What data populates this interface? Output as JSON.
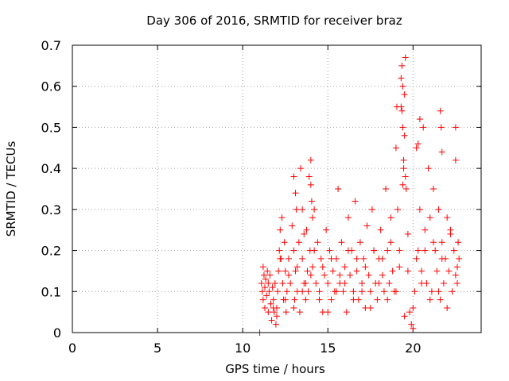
{
  "chart_data": {
    "type": "scatter",
    "title": "Day 306 of 2016, SRMTID for receiver braz",
    "xlabel": "GPS time / hours",
    "ylabel": "SRMTID / TECUs",
    "xlim": [
      0,
      24
    ],
    "ylim": [
      0,
      0.7
    ],
    "xticks": [
      0,
      5,
      10,
      15,
      20
    ],
    "yticks": [
      0,
      0.1,
      0.2,
      0.3,
      0.4,
      0.5,
      0.6,
      0.7
    ],
    "ytick_labels": [
      "0",
      "0.1",
      "0.2",
      "0.3",
      "0.4",
      "0.5",
      "0.6",
      "0.7"
    ],
    "grid": true,
    "marker": "+",
    "marker_color": "#ff0000",
    "series": [
      {
        "name": "SRMTID",
        "x": [
          11.0,
          11.1,
          11.15,
          11.2,
          11.2,
          11.25,
          11.3,
          11.3,
          11.35,
          11.4,
          11.45,
          11.5,
          11.5,
          11.55,
          11.6,
          11.65,
          11.7,
          11.75,
          11.8,
          11.85,
          11.9,
          11.95,
          12.0,
          12.05,
          12.1,
          12.15,
          12.2,
          12.25,
          12.3,
          12.35,
          12.4,
          12.45,
          12.5,
          12.55,
          12.6,
          12.7,
          12.8,
          12.9,
          13.0,
          13.05,
          13.1,
          13.15,
          13.2,
          13.3,
          13.35,
          13.4,
          13.5,
          13.6,
          13.7,
          13.75,
          13.8,
          13.85,
          13.9,
          13.95,
          14.0,
          14.1,
          14.2,
          14.3,
          14.4,
          14.5,
          14.6,
          14.7,
          14.8,
          14.9,
          15.0,
          15.1,
          15.2,
          15.3,
          15.4,
          15.5,
          15.6,
          15.7,
          15.8,
          15.9,
          16.0,
          16.1,
          16.2,
          16.3,
          16.4,
          16.5,
          16.6,
          16.7,
          16.8,
          16.9,
          17.0,
          17.1,
          17.2,
          17.3,
          17.4,
          17.5,
          17.6,
          17.7,
          17.8,
          17.9,
          18.0,
          18.1,
          18.2,
          18.3,
          18.4,
          18.5,
          18.6,
          18.7,
          18.8,
          18.9,
          19.0,
          19.05,
          19.1,
          19.2,
          19.3,
          19.35,
          19.4,
          19.45,
          19.5,
          19.55,
          19.6,
          19.7,
          19.8,
          19.9,
          20.0,
          20.1,
          20.2,
          20.3,
          20.4,
          20.5,
          20.6,
          20.7,
          20.8,
          20.9,
          21.0,
          21.1,
          21.2,
          21.3,
          21.4,
          21.5,
          21.6,
          21.7,
          21.8,
          21.9,
          22.0,
          22.1,
          22.2,
          22.3,
          22.4,
          22.5,
          22.6,
          22.65,
          22.7,
          12.0,
          12.5,
          13.0,
          13.5,
          14.0,
          14.5,
          15.0,
          15.5,
          16.0,
          16.5,
          17.0,
          17.5,
          18.0,
          18.5,
          19.0,
          19.5,
          20.0,
          20.5,
          21.0,
          21.5,
          22.0,
          22.5,
          11.8,
          12.2,
          12.7,
          13.2,
          13.7,
          14.2,
          14.7,
          15.2,
          15.7,
          16.2,
          16.7,
          17.2,
          17.7,
          18.2,
          18.7,
          19.2,
          19.7,
          20.2,
          20.7,
          21.2,
          21.7,
          22.2,
          22.6,
          19.3,
          19.4,
          19.45,
          19.5,
          19.55,
          19.35,
          19.4,
          21.6,
          21.65,
          21.7,
          20.3,
          20.4,
          22.5,
          13.0,
          13.1,
          14.0,
          14.05,
          14.1,
          13.5,
          13.6
        ],
        "y": [
          0.0,
          0.12,
          0.1,
          0.16,
          0.08,
          0.14,
          0.11,
          0.06,
          0.13,
          0.09,
          0.15,
          0.12,
          0.05,
          0.1,
          0.14,
          0.07,
          0.03,
          0.11,
          0.08,
          0.05,
          0.12,
          0.02,
          0.06,
          0.1,
          0.15,
          0.2,
          0.25,
          0.18,
          0.28,
          0.12,
          0.08,
          0.22,
          0.15,
          0.05,
          0.1,
          0.18,
          0.12,
          0.26,
          0.2,
          0.08,
          0.15,
          0.3,
          0.1,
          0.22,
          0.05,
          0.4,
          0.18,
          0.12,
          0.08,
          0.25,
          0.15,
          0.1,
          0.38,
          0.2,
          0.42,
          0.16,
          0.3,
          0.12,
          0.22,
          0.1,
          0.18,
          0.05,
          0.14,
          0.25,
          0.12,
          0.2,
          0.08,
          0.15,
          0.1,
          0.18,
          0.35,
          0.12,
          0.22,
          0.1,
          0.16,
          0.05,
          0.28,
          0.14,
          0.2,
          0.1,
          0.32,
          0.15,
          0.08,
          0.22,
          0.12,
          0.18,
          0.06,
          0.26,
          0.14,
          0.1,
          0.3,
          0.2,
          0.12,
          0.08,
          0.18,
          0.25,
          0.14,
          0.1,
          0.35,
          0.2,
          0.12,
          0.28,
          0.15,
          0.1,
          0.45,
          0.55,
          0.3,
          0.2,
          0.62,
          0.65,
          0.5,
          0.4,
          0.58,
          0.67,
          0.35,
          0.15,
          0.05,
          0.02,
          0.01,
          0.1,
          0.45,
          0.2,
          0.3,
          0.15,
          0.5,
          0.25,
          0.12,
          0.4,
          0.28,
          0.1,
          0.35,
          0.2,
          0.15,
          0.3,
          0.08,
          0.22,
          0.12,
          0.18,
          0.28,
          0.15,
          0.25,
          0.1,
          0.2,
          0.5,
          0.12,
          0.22,
          0.18,
          0.04,
          0.08,
          0.06,
          0.1,
          0.14,
          0.08,
          0.05,
          0.1,
          0.12,
          0.08,
          0.1,
          0.06,
          0.12,
          0.08,
          0.1,
          0.04,
          0.06,
          0.12,
          0.08,
          0.1,
          0.06,
          0.14,
          0.06,
          0.18,
          0.14,
          0.16,
          0.12,
          0.2,
          0.16,
          0.18,
          0.14,
          0.2,
          0.18,
          0.16,
          0.2,
          0.18,
          0.22,
          0.16,
          0.24,
          0.18,
          0.2,
          0.22,
          0.18,
          0.24,
          0.16,
          0.55,
          0.6,
          0.42,
          0.48,
          0.38,
          0.54,
          0.36,
          0.54,
          0.5,
          0.44,
          0.46,
          0.52,
          0.42,
          0.38,
          0.34,
          0.36,
          0.32,
          0.28,
          0.3,
          0.24
        ]
      }
    ]
  }
}
